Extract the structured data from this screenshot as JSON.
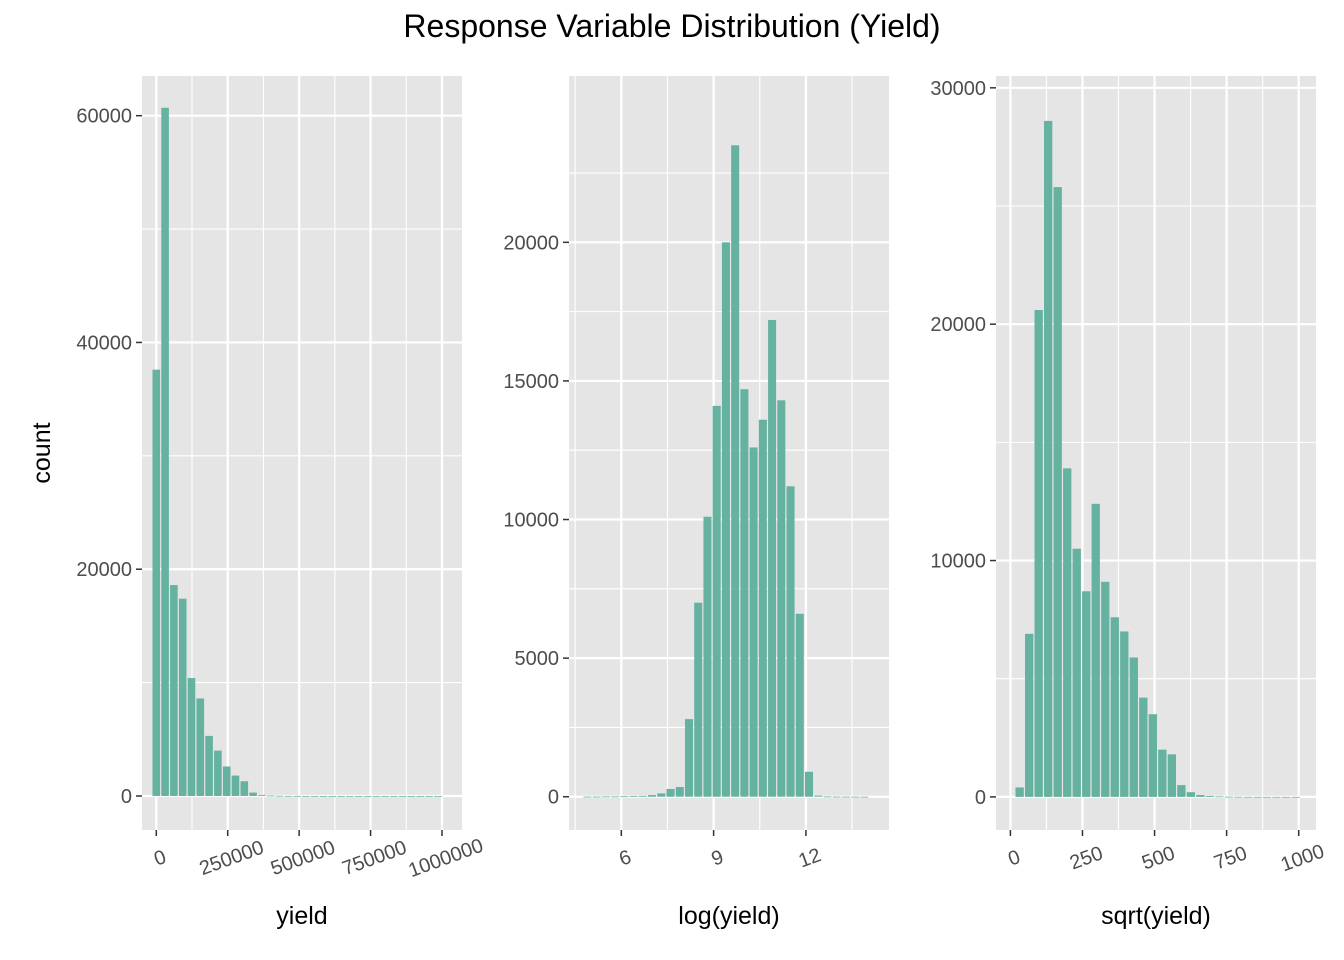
{
  "title": "Response Variable Distribution (Yield)",
  "colors": {
    "panel_bg": "#e5e5e5",
    "grid": "#ffffff",
    "bar": "#66b2a0",
    "tick_text": "#4d4d4d",
    "text": "#000000"
  },
  "chart_data": [
    {
      "type": "bar",
      "xlabel": "yield",
      "ylabel": "count",
      "xlim": [
        -50000,
        1070000
      ],
      "ylim": [
        -3000,
        63500
      ],
      "x_ticks": [
        0,
        250000,
        500000,
        750000,
        1000000
      ],
      "x_tick_labels": [
        "0",
        "250000",
        "500000",
        "750000",
        "1000000"
      ],
      "y_ticks": [
        0,
        20000,
        40000,
        60000
      ],
      "y_tick_labels": [
        "0",
        "20000",
        "40000",
        "60000"
      ],
      "bin_width": 30800,
      "x": [
        0,
        30800,
        61600,
        92400,
        123200,
        154000,
        184800,
        215600,
        246400,
        277200,
        308000,
        338800,
        369600,
        400400,
        431200,
        462000,
        492800,
        523600,
        554400,
        585200,
        616000,
        646800,
        677600,
        708400,
        739200,
        770000,
        800800,
        831600,
        862400,
        893200,
        924000,
        954800,
        985600
      ],
      "values": [
        37600,
        60700,
        18600,
        17400,
        10400,
        8600,
        5300,
        4000,
        2600,
        1800,
        1300,
        300,
        80,
        40,
        20,
        10,
        8,
        5,
        3,
        2,
        2,
        1,
        1,
        1,
        1,
        1,
        1,
        1,
        1,
        1,
        1,
        1,
        1
      ]
    },
    {
      "type": "bar",
      "xlabel": "log(yield)",
      "ylabel": "",
      "xlim": [
        4.3,
        14.7
      ],
      "ylim": [
        -1200,
        26000
      ],
      "x_ticks": [
        6,
        9,
        12
      ],
      "x_tick_labels": [
        "6",
        "9",
        "12"
      ],
      "y_ticks": [
        0,
        5000,
        10000,
        15000,
        20000
      ],
      "y_tick_labels": [
        "0",
        "5000",
        "10000",
        "15000",
        "20000"
      ],
      "bin_width": 0.3,
      "x": [
        4.9,
        5.2,
        5.5,
        5.8,
        6.1,
        6.4,
        6.7,
        7.0,
        7.3,
        7.6,
        7.9,
        8.2,
        8.5,
        8.8,
        9.1,
        9.4,
        9.7,
        10.0,
        10.3,
        10.6,
        10.9,
        11.2,
        11.5,
        11.8,
        12.1,
        12.4,
        12.7,
        13.0,
        13.3,
        13.6,
        13.9
      ],
      "values": [
        5,
        5,
        10,
        10,
        15,
        20,
        30,
        60,
        120,
        280,
        350,
        2800,
        7000,
        10100,
        14100,
        20000,
        23500,
        14700,
        12600,
        13600,
        17200,
        14300,
        11200,
        6600,
        900,
        40,
        10,
        5,
        3,
        2,
        1
      ]
    },
    {
      "type": "bar",
      "xlabel": "sqrt(yield)",
      "ylabel": "",
      "xlim": [
        -50,
        1060
      ],
      "ylim": [
        -1400,
        30500
      ],
      "x_ticks": [
        0,
        250,
        500,
        750,
        1000
      ],
      "x_tick_labels": [
        "0",
        "250",
        "500",
        "750",
        "1000"
      ],
      "y_ticks": [
        0,
        10000,
        20000,
        30000
      ],
      "y_tick_labels": [
        "0",
        "10000",
        "20000",
        "30000"
      ],
      "bin_width": 33,
      "x": [
        32,
        65,
        98,
        131,
        164,
        197,
        230,
        263,
        296,
        329,
        362,
        395,
        428,
        461,
        494,
        527,
        560,
        593,
        626,
        659,
        692,
        725,
        758,
        791,
        824,
        857,
        890,
        923,
        956,
        989
      ],
      "values": [
        400,
        6900,
        20600,
        28600,
        25800,
        13900,
        10500,
        8700,
        12400,
        9100,
        7600,
        7000,
        5900,
        4200,
        3500,
        2000,
        1800,
        500,
        200,
        80,
        40,
        20,
        10,
        6,
        4,
        3,
        2,
        2,
        1,
        1
      ]
    }
  ]
}
